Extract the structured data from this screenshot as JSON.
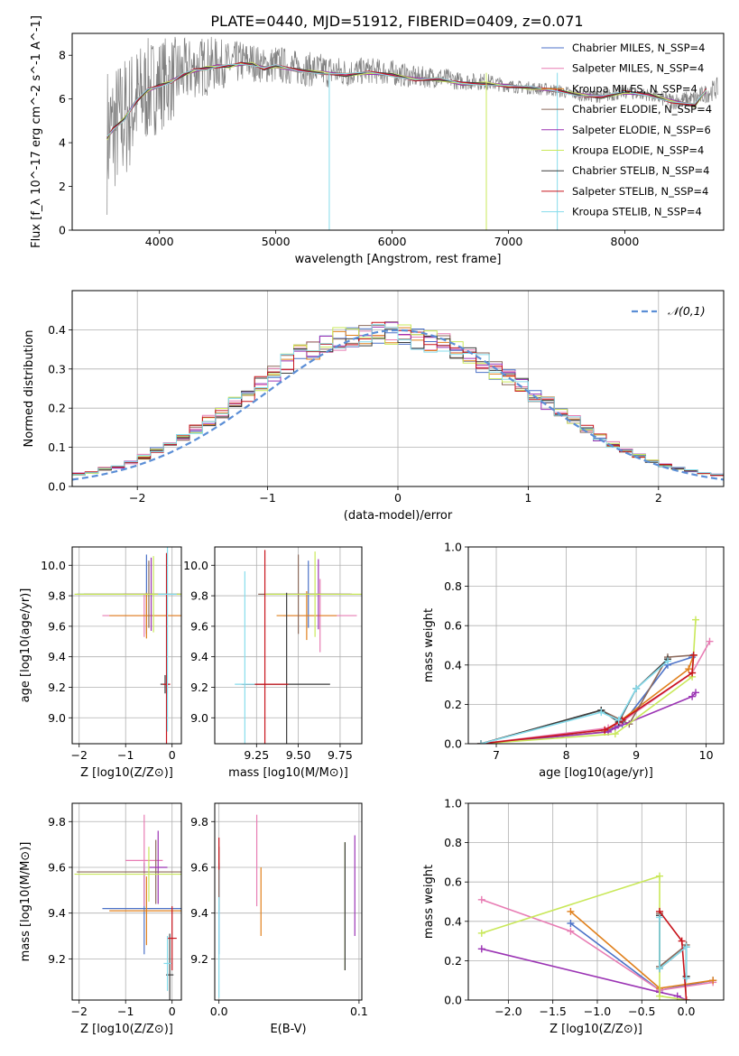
{
  "figure": {
    "title": "PLATE=0440, MJD=51912, FIBERID=0409, z=0.071"
  },
  "series_colors": [
    "#4c72c8",
    "#e87db4",
    "#e0801c",
    "#8c6a5c",
    "#9b34b4",
    "#c9e85a",
    "#3c3c3c",
    "#c8141c",
    "#86dcec"
  ],
  "chart_data": [
    {
      "type": "line",
      "name": "spectrum",
      "xlabel": "wavelength [Angstrom, rest frame]",
      "ylabel": "Flux [f_λ 10^-17 erg cm^-2 s^-1 A^-1]",
      "xlim": [
        3250,
        8850
      ],
      "ylim": [
        0,
        9
      ],
      "xticks": [
        4000,
        5000,
        6000,
        7000,
        8000
      ],
      "yticks": [
        0,
        2,
        4,
        6,
        8
      ],
      "legend_position": "upper-right",
      "legend": [
        "Chabrier MILES, N_SSP=4",
        "Salpeter MILES, N_SSP=4",
        "Kroupa MILES, N_SSP=4",
        "Chabrier ELODIE, N_SSP=4",
        "Salpeter ELODIE, N_SSP=6",
        "Kroupa ELODIE, N_SSP=4",
        "Chabrier STELIB, N_SSP=4",
        "Salpeter STELIB, N_SSP=4",
        "Kroupa STELIB, N_SSP=4"
      ],
      "data_series": {
        "name": "data",
        "color": "#808080",
        "x": [
          3550,
          3600,
          3700,
          3800,
          3900,
          4000,
          4100,
          4200,
          4300,
          4400,
          4500,
          4600,
          4700,
          4800,
          4900,
          5000,
          5200,
          5400,
          5600,
          5800,
          6000,
          6200,
          6400,
          6600,
          6800,
          7000,
          7200,
          7400,
          7600,
          7800,
          8000,
          8200,
          8400,
          8600,
          8800
        ],
        "y": [
          4.2,
          4.6,
          5.1,
          5.9,
          6.4,
          6.7,
          6.9,
          7.2,
          7.4,
          7.5,
          7.6,
          7.6,
          7.7,
          7.7,
          7.5,
          7.6,
          7.4,
          7.3,
          7.2,
          7.3,
          7.2,
          7.0,
          7.0,
          6.8,
          6.8,
          6.6,
          6.5,
          6.4,
          6.2,
          6.1,
          6.3,
          6.2,
          5.9,
          6.0,
          6.5
        ],
        "noise": [
          3.5,
          3.0,
          3.0,
          2.6,
          2.4,
          2.2,
          2.0,
          1.6,
          1.4,
          1.4,
          1.2,
          1.0,
          1.0,
          0.9,
          0.8,
          0.9,
          0.8,
          0.8,
          0.7,
          0.6,
          0.6,
          0.5,
          0.5,
          0.4,
          0.4,
          0.3,
          0.3,
          0.3,
          0.3,
          0.3,
          0.3,
          0.3,
          0.4,
          0.4,
          0.5
        ]
      },
      "model_series": {
        "x": [
          3550,
          3600,
          3700,
          3800,
          3900,
          4000,
          4100,
          4200,
          4300,
          4400,
          4500,
          4600,
          4700,
          4800,
          4900,
          5000,
          5200,
          5400,
          5600,
          5800,
          6000,
          6200,
          6400,
          6600,
          6800,
          7000,
          7200,
          7400,
          7600,
          7800,
          8000,
          8200,
          8400,
          8600,
          8700
        ],
        "y": [
          4.2,
          4.6,
          5.1,
          5.9,
          6.4,
          6.6,
          6.8,
          7.1,
          7.3,
          7.4,
          7.5,
          7.5,
          7.6,
          7.6,
          7.4,
          7.5,
          7.3,
          7.2,
          7.1,
          7.2,
          7.1,
          6.9,
          6.9,
          6.7,
          6.7,
          6.6,
          6.5,
          6.4,
          6.2,
          6.1,
          6.3,
          6.2,
          5.9,
          5.7,
          6.4
        ]
      },
      "dips": [
        {
          "x": 5460,
          "y": 0.0
        },
        {
          "x": 6810,
          "y": 0.0
        },
        {
          "x": 7420,
          "y": 0.0
        }
      ]
    },
    {
      "type": "step",
      "name": "residual-histogram",
      "xlabel": "(data-model)/error",
      "ylabel": "Normed distribution",
      "xlim": [
        -2.5,
        2.5
      ],
      "ylim": [
        0,
        0.5
      ],
      "xticks": [
        -2,
        -1,
        0,
        1,
        2
      ],
      "yticks": [
        0,
        0.1,
        0.2,
        0.3,
        0.4
      ],
      "bin_width": 0.1,
      "bin_centers": [
        -2.45,
        -2.35,
        -2.25,
        -2.15,
        -2.05,
        -1.95,
        -1.85,
        -1.75,
        -1.65,
        -1.55,
        -1.45,
        -1.35,
        -1.25,
        -1.15,
        -1.05,
        -0.95,
        -0.85,
        -0.75,
        -0.65,
        -0.55,
        -0.45,
        -0.35,
        -0.25,
        -0.15,
        -0.05,
        0.05,
        0.15,
        0.25,
        0.35,
        0.45,
        0.55,
        0.65,
        0.75,
        0.85,
        0.95,
        1.05,
        1.15,
        1.25,
        1.35,
        1.45,
        1.55,
        1.65,
        1.75,
        1.85,
        1.95,
        2.05,
        2.15,
        2.25,
        2.35,
        2.45
      ],
      "base_values": [
        0.032,
        0.036,
        0.045,
        0.05,
        0.062,
        0.076,
        0.092,
        0.108,
        0.126,
        0.146,
        0.168,
        0.19,
        0.212,
        0.236,
        0.262,
        0.29,
        0.314,
        0.336,
        0.352,
        0.366,
        0.376,
        0.384,
        0.388,
        0.392,
        0.39,
        0.386,
        0.38,
        0.372,
        0.362,
        0.35,
        0.334,
        0.316,
        0.296,
        0.276,
        0.256,
        0.234,
        0.212,
        0.19,
        0.168,
        0.146,
        0.126,
        0.108,
        0.092,
        0.078,
        0.064,
        0.054,
        0.046,
        0.04,
        0.034,
        0.03
      ],
      "reference_curve": {
        "label": "𝒩(0,1)",
        "style": "dashed",
        "color": "#5b8ed6"
      },
      "legend_position": "upper-right"
    },
    {
      "type": "errorbar",
      "name": "age-vs-metallicity",
      "xlabel": "Z [log10(Z/Z⊙)]",
      "ylabel": "age [log10(age/yr)]",
      "xlim": [
        -2.15,
        0.2
      ],
      "ylim": [
        8.83,
        10.12
      ],
      "xticks": [
        -2,
        -1,
        0
      ],
      "yticks": [
        9.0,
        9.2,
        9.4,
        9.6,
        9.8,
        10.0
      ],
      "points": [
        {
          "x": -0.55,
          "y": 9.81,
          "xerr": 1.5,
          "yerr": 0.26,
          "c": 0
        },
        {
          "x": -0.6,
          "y": 9.67,
          "xerr": 0.9,
          "yerr": 0.14,
          "c": 1
        },
        {
          "x": -0.55,
          "y": 9.67,
          "xerr": 0.8,
          "yerr": 0.15,
          "c": 2
        },
        {
          "x": -0.5,
          "y": 9.81,
          "xerr": 1.4,
          "yerr": 0.22,
          "c": 3
        },
        {
          "x": -0.45,
          "y": 9.81,
          "xerr": 0.6,
          "yerr": 0.24,
          "c": 4
        },
        {
          "x": -0.4,
          "y": 9.81,
          "xerr": 1.7,
          "yerr": 0.25,
          "c": 5
        },
        {
          "x": -0.15,
          "y": 9.22,
          "xerr": 0.1,
          "yerr": 0.06,
          "c": 6
        },
        {
          "x": -0.12,
          "y": 9.22,
          "xerr": 0.08,
          "yerr": 0.86,
          "c": 7
        },
        {
          "x": -0.1,
          "y": 9.81,
          "xerr": 0.2,
          "yerr": 0.9,
          "c": 8
        }
      ]
    },
    {
      "type": "errorbar",
      "name": "age-vs-mass",
      "xlabel": "mass [log10(M/M⊙)]",
      "ylabel": "",
      "xlim": [
        9.0,
        9.88
      ],
      "ylim": [
        8.83,
        10.12
      ],
      "xticks": [
        9.25,
        9.5,
        9.75
      ],
      "yticks": [
        9.0,
        9.2,
        9.4,
        9.6,
        9.8,
        10.0
      ],
      "points": [
        {
          "x": 9.56,
          "y": 9.81,
          "xerr": 0.25,
          "yerr": 0.22,
          "c": 0
        },
        {
          "x": 9.63,
          "y": 9.67,
          "xerr": 0.22,
          "yerr": 0.24,
          "c": 1
        },
        {
          "x": 9.55,
          "y": 9.67,
          "xerr": 0.18,
          "yerr": 0.16,
          "c": 2
        },
        {
          "x": 9.5,
          "y": 9.81,
          "xerr": 0.24,
          "yerr": 0.26,
          "c": 3
        },
        {
          "x": 9.62,
          "y": 9.81,
          "xerr": 0.2,
          "yerr": 0.23,
          "c": 4
        },
        {
          "x": 9.6,
          "y": 9.81,
          "xerr": 0.3,
          "yerr": 0.28,
          "c": 5
        },
        {
          "x": 9.43,
          "y": 9.22,
          "xerr": 0.26,
          "yerr": 0.6,
          "c": 6
        },
        {
          "x": 9.3,
          "y": 9.22,
          "xerr": 0.14,
          "yerr": 0.88,
          "c": 7
        },
        {
          "x": 9.18,
          "y": 9.22,
          "xerr": 0.06,
          "yerr": 0.74,
          "c": 8
        }
      ]
    },
    {
      "type": "line",
      "name": "mass-weight-vs-age",
      "xlabel": "age [log10(age/yr)]",
      "ylabel": "mass weight",
      "xlim": [
        6.6,
        10.25
      ],
      "ylim": [
        0,
        1.0
      ],
      "xticks": [
        7,
        8,
        9,
        10
      ],
      "yticks": [
        0.0,
        0.2,
        0.4,
        0.6,
        0.8,
        1.0
      ],
      "series": [
        {
          "x": [
            6.78,
            8.55,
            8.8,
            9.45,
            9.8
          ],
          "y": [
            0.0,
            0.06,
            0.1,
            0.4,
            0.44
          ],
          "c": 0
        },
        {
          "x": [
            6.78,
            8.6,
            8.75,
            9.8,
            10.05
          ],
          "y": [
            0.0,
            0.08,
            0.1,
            0.36,
            0.52
          ],
          "c": 1
        },
        {
          "x": [
            6.78,
            8.55,
            8.75,
            9.75,
            9.82
          ],
          "y": [
            0.0,
            0.06,
            0.11,
            0.38,
            0.45
          ],
          "c": 2
        },
        {
          "x": [
            6.78,
            8.5,
            8.9,
            9.45,
            9.82
          ],
          "y": [
            0.0,
            0.17,
            0.1,
            0.44,
            0.45
          ],
          "c": 3
        },
        {
          "x": [
            6.78,
            8.6,
            8.7,
            9.8,
            9.85
          ],
          "y": [
            0.0,
            0.06,
            0.08,
            0.24,
            0.26
          ],
          "c": 4
        },
        {
          "x": [
            6.78,
            8.7,
            9.8,
            9.85
          ],
          "y": [
            0.0,
            0.05,
            0.34,
            0.63
          ],
          "c": 5
        },
        {
          "x": [
            6.78,
            8.5,
            8.75,
            9.0,
            9.45
          ],
          "y": [
            0.0,
            0.17,
            0.11,
            0.28,
            0.43
          ],
          "c": 6
        },
        {
          "x": [
            6.78,
            8.55,
            8.8,
            9.8,
            9.82
          ],
          "y": [
            0.0,
            0.07,
            0.12,
            0.36,
            0.45
          ],
          "c": 7
        },
        {
          "x": [
            6.78,
            8.5,
            8.75,
            9.0,
            9.45
          ],
          "y": [
            0.0,
            0.16,
            0.12,
            0.28,
            0.42
          ],
          "c": 8
        }
      ]
    },
    {
      "type": "errorbar",
      "name": "mass-vs-metallicity",
      "xlabel": "Z [log10(Z/Z⊙)]",
      "ylabel": "mass [log10(M/M⊙)]",
      "xlim": [
        -2.15,
        0.2
      ],
      "ylim": [
        9.02,
        9.88
      ],
      "xticks": [
        -2,
        -1,
        0
      ],
      "yticks": [
        9.2,
        9.4,
        9.6,
        9.8
      ],
      "points": [
        {
          "x": -0.6,
          "y": 9.42,
          "xerr": 0.9,
          "yerr": 0.2,
          "c": 0
        },
        {
          "x": -0.6,
          "y": 9.63,
          "xerr": 0.4,
          "yerr": 0.2,
          "c": 1
        },
        {
          "x": -0.55,
          "y": 9.41,
          "xerr": 0.8,
          "yerr": 0.15,
          "c": 2
        },
        {
          "x": -0.35,
          "y": 9.58,
          "xerr": 1.7,
          "yerr": 0.14,
          "c": 3
        },
        {
          "x": -0.3,
          "y": 9.6,
          "xerr": 0.2,
          "yerr": 0.16,
          "c": 4
        },
        {
          "x": -0.5,
          "y": 9.57,
          "xerr": 1.6,
          "yerr": 0.12,
          "c": 5
        },
        {
          "x": -0.05,
          "y": 9.13,
          "xerr": 0.08,
          "yerr": 0.18,
          "c": 6
        },
        {
          "x": 0.0,
          "y": 9.29,
          "xerr": 0.1,
          "yerr": 0.14,
          "c": 7
        },
        {
          "x": -0.1,
          "y": 9.18,
          "xerr": 0.08,
          "yerr": 0.12,
          "c": 8
        }
      ]
    },
    {
      "type": "errorbar",
      "name": "mass-vs-ebv",
      "xlabel": "E(B-V)",
      "ylabel": "",
      "xlim": [
        -0.003,
        0.102
      ],
      "ylim": [
        9.02,
        9.88
      ],
      "xticks": [
        0.0,
        0.1
      ],
      "yticks": [
        9.2,
        9.4,
        9.6,
        9.8
      ],
      "points": [
        {
          "x": 0.0,
          "y": 9.42,
          "yerr": 0.2,
          "c": 0
        },
        {
          "x": 0.027,
          "y": 9.63,
          "yerr": 0.2,
          "c": 1
        },
        {
          "x": 0.03,
          "y": 9.45,
          "yerr": 0.15,
          "c": 2
        },
        {
          "x": 0.0,
          "y": 9.55,
          "yerr": 0.14,
          "c": 3
        },
        {
          "x": 0.097,
          "y": 9.52,
          "yerr": 0.22,
          "c": 4
        },
        {
          "x": 0.09,
          "y": 9.43,
          "yerr": 0.28,
          "c": 5
        },
        {
          "x": 0.09,
          "y": 9.43,
          "yerr": 0.28,
          "c": 6
        },
        {
          "x": 0.0,
          "y": 9.66,
          "yerr": 0.07,
          "c": 7
        },
        {
          "x": 0.0,
          "y": 9.25,
          "yerr": 0.22,
          "c": 8
        }
      ]
    },
    {
      "type": "line",
      "name": "mass-weight-vs-metallicity",
      "xlabel": "Z [log10(Z/Z⊙)]",
      "ylabel": "mass weight",
      "xlim": [
        -2.45,
        0.42
      ],
      "ylim": [
        0,
        1.0
      ],
      "xticks": [
        -2.0,
        -1.5,
        -1.0,
        -0.5,
        0.0
      ],
      "yticks": [
        0.0,
        0.2,
        0.4,
        0.6,
        0.8,
        1.0
      ],
      "series": [
        {
          "x": [
            -1.3,
            -0.3,
            0.3
          ],
          "y": [
            0.39,
            0.05,
            0.1
          ],
          "c": 0
        },
        {
          "x": [
            -2.3,
            -1.3,
            -0.3,
            0.3
          ],
          "y": [
            0.51,
            0.35,
            0.05,
            0.09
          ],
          "c": 1
        },
        {
          "x": [
            -1.3,
            -0.3,
            0.3
          ],
          "y": [
            0.45,
            0.06,
            0.1
          ],
          "c": 2
        },
        {
          "x": [
            -0.3,
            -0.3,
            0.0,
            0.0
          ],
          "y": [
            0.44,
            0.17,
            0.28,
            0.12
          ],
          "c": 3
        },
        {
          "x": [
            -2.3,
            -0.3,
            -0.1,
            0.0
          ],
          "y": [
            0.26,
            0.04,
            0.02,
            0.0
          ],
          "c": 4
        },
        {
          "x": [
            -2.3,
            -0.3,
            -0.3,
            0.0
          ],
          "y": [
            0.34,
            0.63,
            0.02,
            0.0
          ],
          "c": 5
        },
        {
          "x": [
            -0.3,
            -0.3,
            0.0,
            0.0
          ],
          "y": [
            0.43,
            0.16,
            0.27,
            0.12
          ],
          "c": 6
        },
        {
          "x": [
            -0.3,
            -0.05,
            0.0
          ],
          "y": [
            0.45,
            0.3,
            0.0
          ],
          "c": 7
        },
        {
          "x": [
            -0.3,
            -0.3,
            0.0,
            0.0
          ],
          "y": [
            0.42,
            0.16,
            0.27,
            0.11
          ],
          "c": 8
        }
      ]
    }
  ]
}
